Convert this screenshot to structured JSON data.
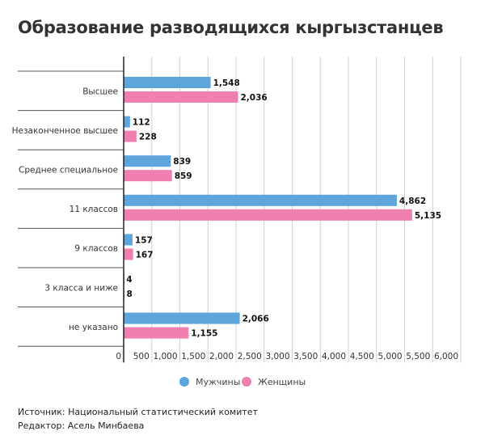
{
  "chart_data": {
    "type": "bar",
    "orientation": "horizontal",
    "title": "Образование разводящихся кыргызстанцев",
    "categories": [
      "Высшее",
      "Незаконченное высшее",
      "Среднее специальное",
      "11 классов",
      "9 классов",
      "3 класса и ниже",
      "не указано"
    ],
    "series": [
      {
        "name": "Мужчины",
        "color": "#5ea5dc",
        "values": [
          1548,
          112,
          839,
          4862,
          157,
          4,
          2066
        ],
        "labels": [
          "1,548",
          "112",
          "839",
          "4,862",
          "157",
          "4",
          "2,066"
        ]
      },
      {
        "name": "Женщины",
        "color": "#ef7fae",
        "values": [
          2036,
          228,
          859,
          5135,
          167,
          8,
          1155
        ],
        "labels": [
          "2,036",
          "228",
          "859",
          "5,135",
          "167",
          "8",
          "1,155"
        ]
      }
    ],
    "xlim": [
      0,
      6000
    ],
    "xticks": [
      "0",
      "500",
      "1,000",
      "1,500",
      "2,000",
      "2,500",
      "3,000",
      "3,500",
      "4,000",
      "4,500",
      "5,000",
      "5,500",
      "6,000"
    ],
    "grid": true,
    "legend": "bottom-center"
  },
  "footer": {
    "source": "Источник: Национальный статистический комитет",
    "editor": "Редактор: Асель Минбаева"
  }
}
